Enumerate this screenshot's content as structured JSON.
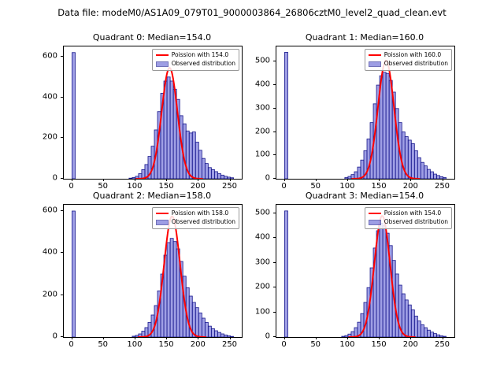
{
  "figure": {
    "title": "Data file: modeM0/AS1A09_079T01_9000003864_26806cztM0_level2_quad_clean.evt"
  },
  "colors": {
    "bar_fill": "#5f5fd3",
    "bar_fill_opacity": "0.6",
    "bar_edge": "#16168c",
    "curve": "#ff0000",
    "axes_edge": "#000000"
  },
  "chart_data": [
    {
      "type": "bar",
      "title": "Quadrant 0: Median=154.0",
      "legend": [
        "Poission with 154.0",
        "Observed distribution"
      ],
      "legend_position": "upper right",
      "xlim": [
        -13,
        268
      ],
      "ylim": [
        0,
        650
      ],
      "xticks": [
        0,
        50,
        100,
        150,
        200,
        250
      ],
      "yticks": [
        0,
        200,
        400,
        600
      ],
      "bin_start": 0,
      "bin_width": 5,
      "counts": [
        620,
        0,
        0,
        0,
        0,
        0,
        0,
        0,
        0,
        0,
        0,
        0,
        0,
        0,
        0,
        0,
        0,
        0,
        3,
        6,
        12,
        25,
        45,
        70,
        110,
        160,
        240,
        330,
        420,
        480,
        500,
        480,
        440,
        390,
        310,
        270,
        235,
        225,
        230,
        180,
        140,
        100,
        75,
        55,
        45,
        35,
        25,
        18,
        12,
        8,
        5
      ],
      "poisson": {
        "lambda": 154,
        "peak": 545
      }
    },
    {
      "type": "bar",
      "title": "Quadrant 1: Median=160.0",
      "legend": [
        "Poission with 160.0",
        "Observed distribution"
      ],
      "legend_position": "upper right",
      "xlim": [
        -13,
        268
      ],
      "ylim": [
        0,
        565
      ],
      "xticks": [
        0,
        50,
        100,
        150,
        200,
        250
      ],
      "yticks": [
        0,
        100,
        200,
        300,
        400,
        500
      ],
      "bin_start": 0,
      "bin_width": 5,
      "counts": [
        540,
        0,
        0,
        0,
        0,
        0,
        0,
        0,
        0,
        0,
        0,
        0,
        0,
        0,
        0,
        0,
        0,
        0,
        0,
        5,
        10,
        18,
        30,
        50,
        80,
        120,
        170,
        240,
        320,
        400,
        440,
        455,
        450,
        420,
        370,
        300,
        240,
        200,
        180,
        165,
        150,
        120,
        90,
        70,
        55,
        40,
        30,
        20,
        14,
        9,
        5
      ],
      "poisson": {
        "lambda": 160,
        "peak": 505
      }
    },
    {
      "type": "bar",
      "title": "Quadrant 2: Median=158.0",
      "legend": [
        "Poission with 158.0",
        "Observed distribution"
      ],
      "legend_position": "upper right",
      "xlim": [
        -13,
        268
      ],
      "ylim": [
        0,
        630
      ],
      "xticks": [
        0,
        50,
        100,
        150,
        200,
        250
      ],
      "yticks": [
        0,
        200,
        400,
        600
      ],
      "bin_start": 0,
      "bin_width": 5,
      "counts": [
        600,
        0,
        0,
        0,
        0,
        0,
        0,
        0,
        0,
        0,
        0,
        0,
        0,
        0,
        0,
        0,
        0,
        0,
        0,
        4,
        8,
        15,
        28,
        45,
        70,
        105,
        150,
        220,
        300,
        390,
        450,
        470,
        455,
        420,
        360,
        290,
        235,
        195,
        165,
        140,
        115,
        90,
        70,
        52,
        40,
        30,
        22,
        15,
        10,
        6,
        3
      ],
      "poisson": {
        "lambda": 158,
        "peak": 575
      }
    },
    {
      "type": "bar",
      "title": "Quadrant 3: Median=154.0",
      "legend": [
        "Poission with 154.0",
        "Observed distribution"
      ],
      "legend_position": "upper right",
      "xlim": [
        -13,
        268
      ],
      "ylim": [
        0,
        535
      ],
      "xticks": [
        0,
        50,
        100,
        150,
        200,
        250
      ],
      "yticks": [
        0,
        100,
        200,
        300,
        400,
        500
      ],
      "bin_start": 0,
      "bin_width": 5,
      "counts": [
        510,
        0,
        0,
        0,
        0,
        0,
        0,
        0,
        0,
        0,
        0,
        0,
        0,
        0,
        0,
        0,
        0,
        0,
        3,
        6,
        12,
        22,
        38,
        60,
        95,
        140,
        200,
        280,
        360,
        430,
        460,
        450,
        420,
        370,
        310,
        255,
        210,
        175,
        150,
        130,
        110,
        85,
        65,
        50,
        38,
        28,
        20,
        14,
        9,
        5,
        3
      ],
      "poisson": {
        "lambda": 154,
        "peak": 490
      }
    }
  ]
}
